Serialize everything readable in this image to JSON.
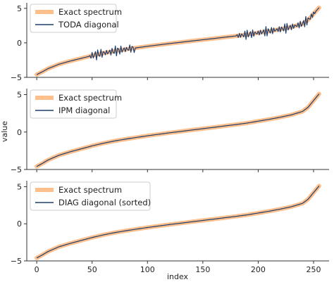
{
  "chart_data": {
    "type": "line",
    "layout": "3 vertically stacked panels sharing x axis",
    "xlabel": "index",
    "ylabel": "value",
    "xlim": [
      -9,
      264
    ],
    "ylim": [
      -5,
      5.8
    ],
    "xticks": [
      0,
      50,
      100,
      150,
      200,
      250
    ],
    "yticks": [
      -5,
      0,
      5
    ],
    "grid": false,
    "legend_location": "upper left",
    "colors": {
      "exact": "#fdbf8c",
      "diagonal": "#1f3e6c",
      "axis": "#333333"
    },
    "exact_spectrum": {
      "name": "Exact spectrum",
      "anchors": [
        [
          0,
          -4.6
        ],
        [
          5,
          -4.2
        ],
        [
          10,
          -3.75
        ],
        [
          20,
          -3.1
        ],
        [
          30,
          -2.65
        ],
        [
          40,
          -2.25
        ],
        [
          50,
          -1.85
        ],
        [
          60,
          -1.5
        ],
        [
          70,
          -1.2
        ],
        [
          80,
          -0.95
        ],
        [
          90,
          -0.72
        ],
        [
          100,
          -0.5
        ],
        [
          110,
          -0.3
        ],
        [
          120,
          -0.1
        ],
        [
          130,
          0.08
        ],
        [
          140,
          0.27
        ],
        [
          150,
          0.45
        ],
        [
          160,
          0.63
        ],
        [
          170,
          0.82
        ],
        [
          180,
          1.0
        ],
        [
          190,
          1.2
        ],
        [
          200,
          1.45
        ],
        [
          210,
          1.7
        ],
        [
          220,
          1.98
        ],
        [
          230,
          2.3
        ],
        [
          240,
          2.75
        ],
        [
          245,
          3.3
        ],
        [
          250,
          4.2
        ],
        [
          255,
          5.1
        ]
      ]
    },
    "panels": [
      {
        "legend": [
          "Exact spectrum",
          "TODA diagonal"
        ],
        "diagonal_name": "TODA diagonal",
        "oscillation_regions": [
          {
            "from": 48,
            "to": 88,
            "amplitude": 0.8,
            "period": 2.6
          },
          {
            "from": 180,
            "to": 252,
            "amplitude": 0.75,
            "period": 2.4
          }
        ],
        "spike": {
          "x": 84,
          "y": -0.3
        }
      },
      {
        "legend": [
          "Exact spectrum",
          "IPM diagonal"
        ],
        "diagonal_name": "IPM diagonal",
        "oscillation_regions": []
      },
      {
        "legend": [
          "Exact spectrum",
          "DIAG diagonal (sorted)"
        ],
        "diagonal_name": "DIAG diagonal (sorted)",
        "oscillation_regions": []
      }
    ]
  }
}
